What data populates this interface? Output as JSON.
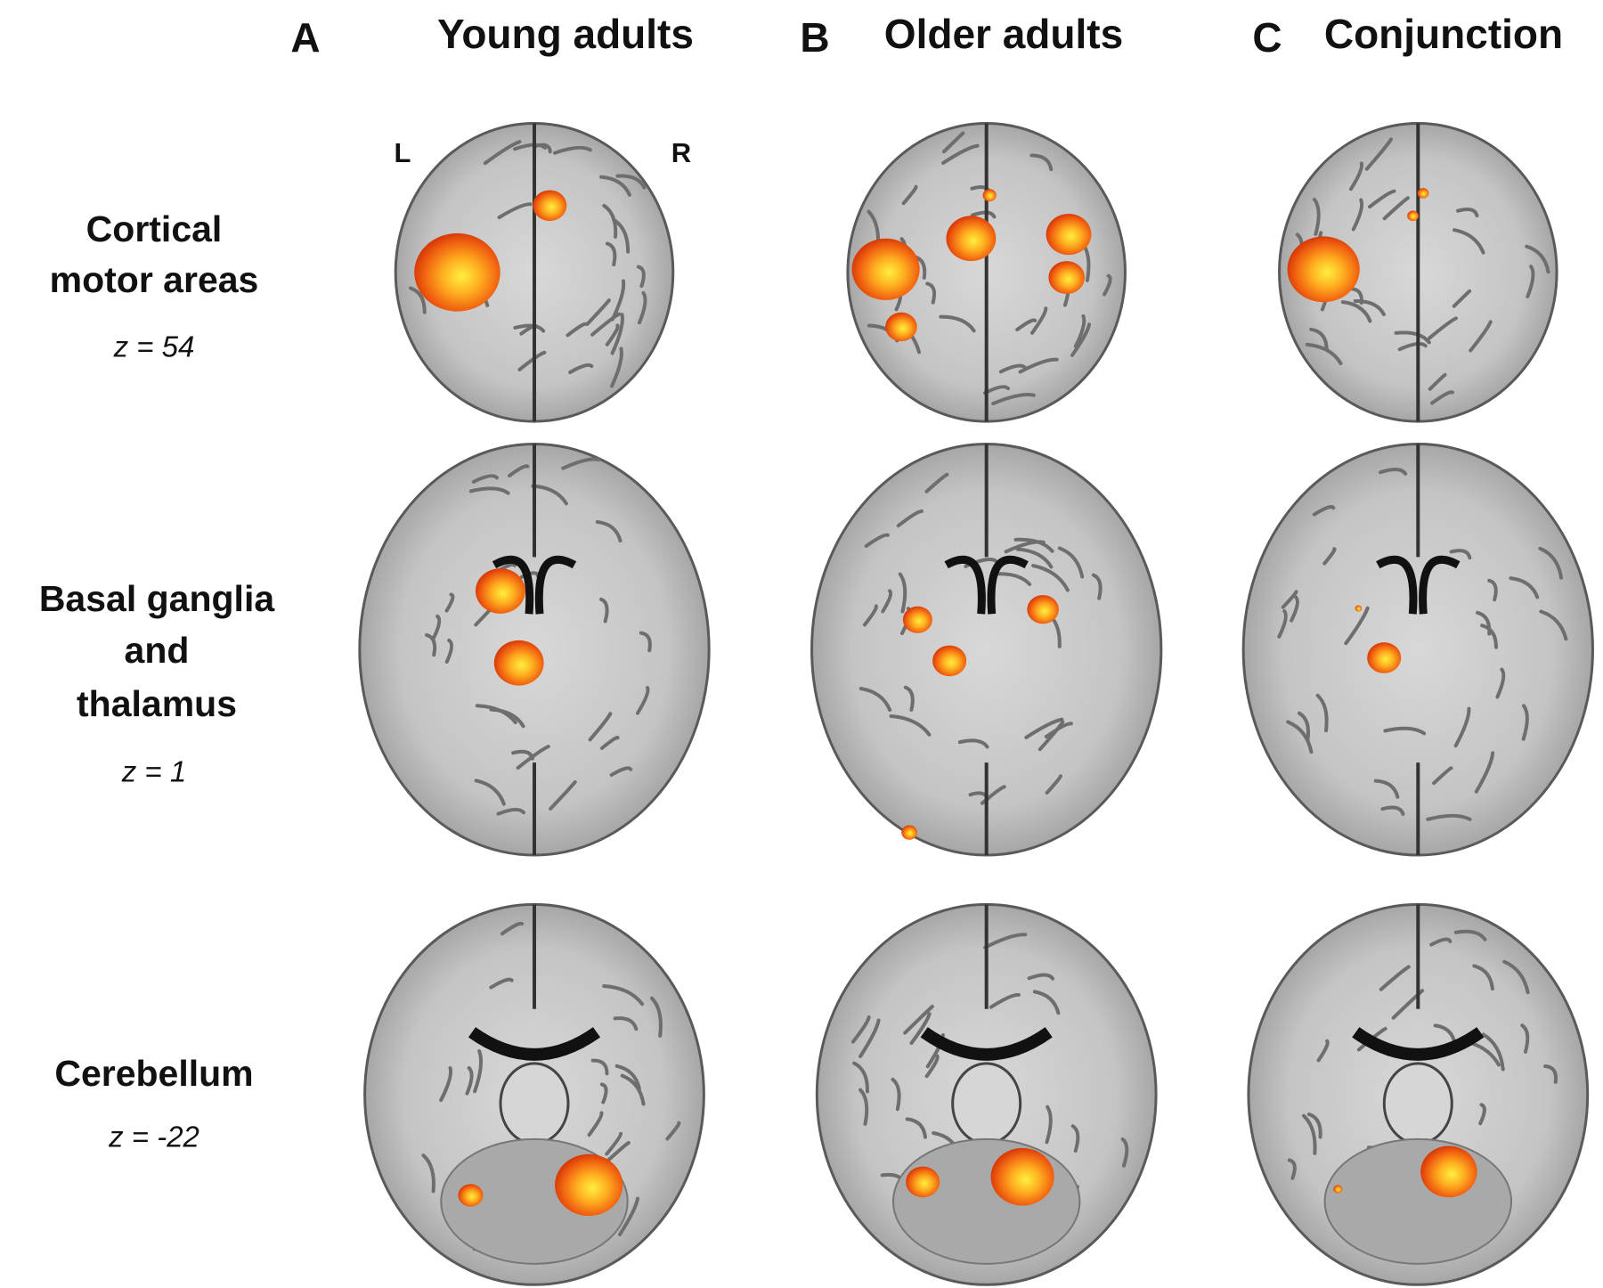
{
  "columns": [
    {
      "letter": "A",
      "title": "Young adults"
    },
    {
      "letter": "B",
      "title": "Older adults"
    },
    {
      "letter": "C",
      "title": "Conjunction"
    }
  ],
  "rows": [
    {
      "label": [
        "Cortical",
        "motor areas"
      ],
      "slice": "z = 54"
    },
    {
      "label": [
        "Basal ganglia",
        "and",
        "thalamus"
      ],
      "slice": "z = 1"
    },
    {
      "label": [
        "Cerebellum"
      ],
      "slice": "z = -22"
    }
  ],
  "orientation": {
    "left": "L",
    "right": "R"
  }
}
